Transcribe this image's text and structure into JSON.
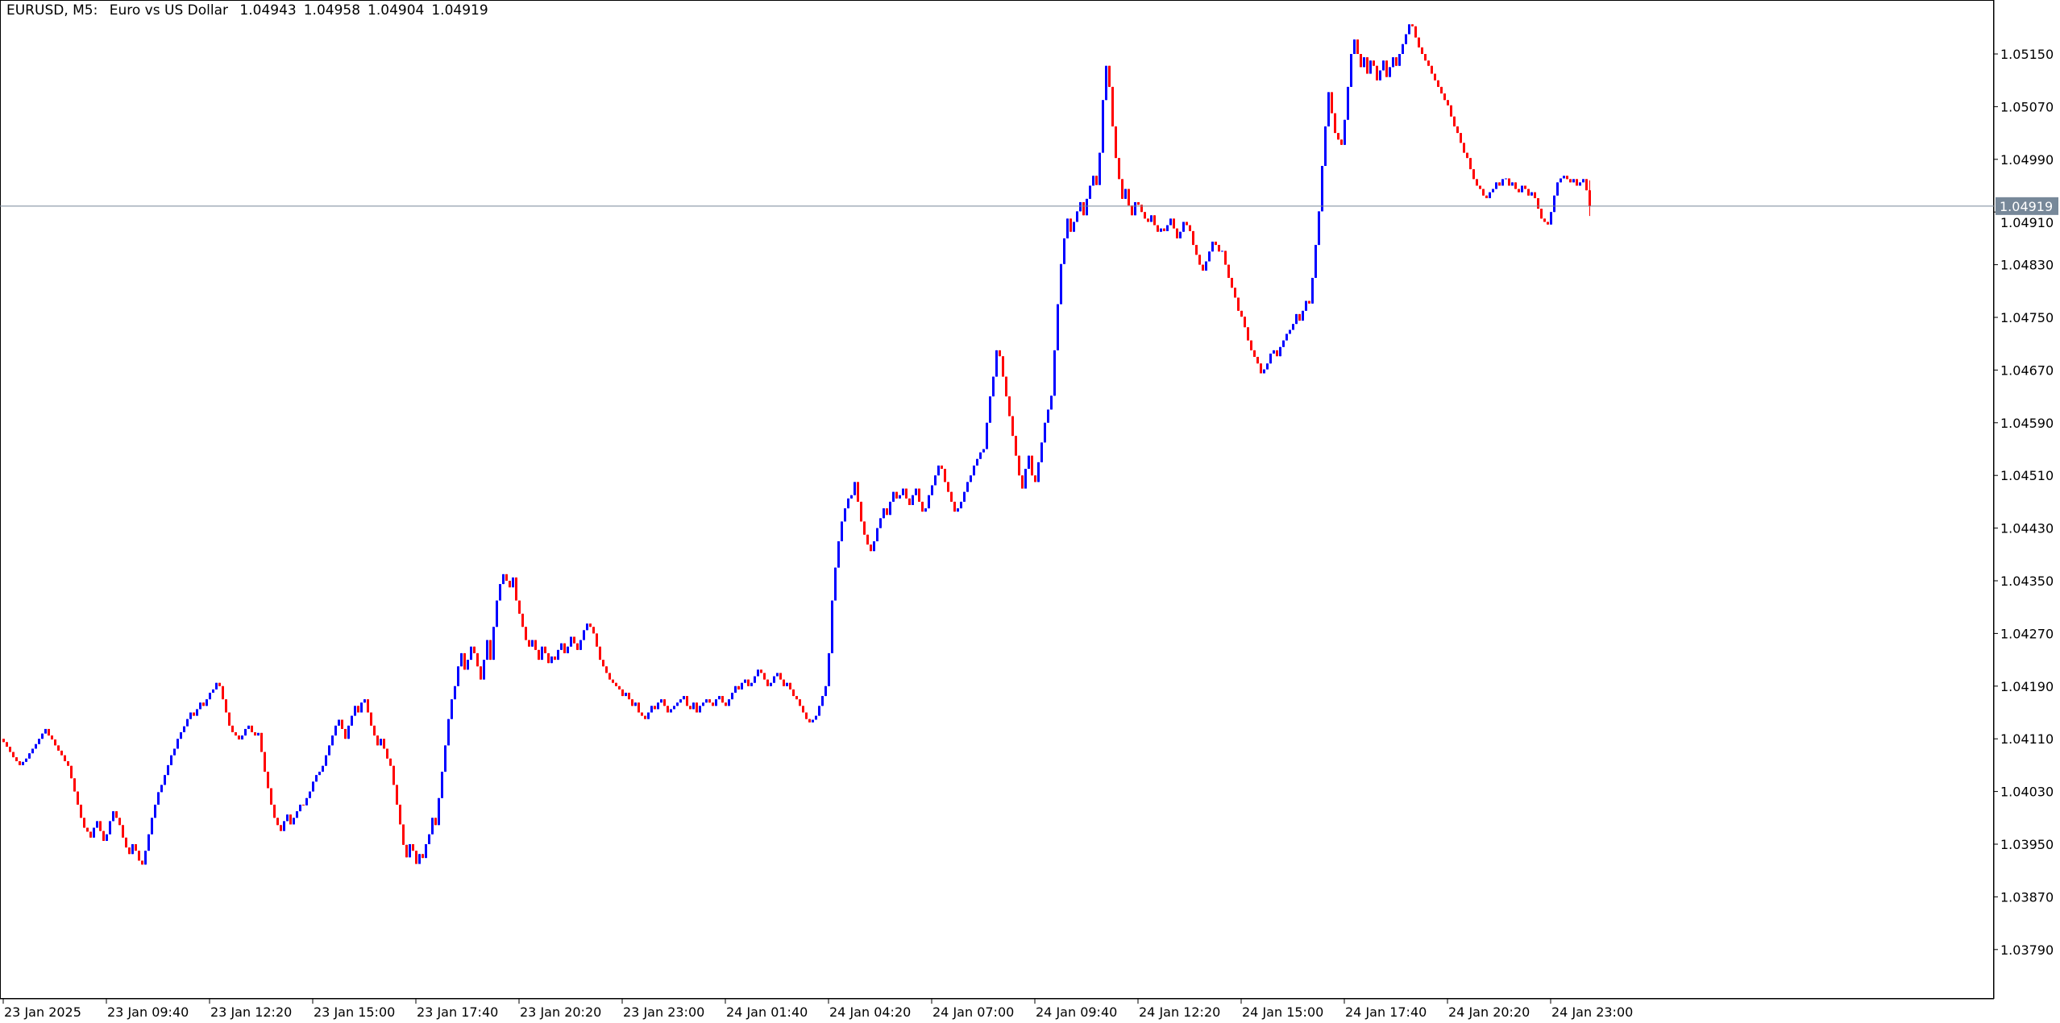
{
  "header": {
    "symbol_timeframe": "EURUSD, M5:",
    "description": "Euro vs US Dollar",
    "open": "1.04943",
    "high": "1.04958",
    "low": "1.04904",
    "close": "1.04919"
  },
  "colors": {
    "bull": "#0000ff",
    "bear": "#ff0000",
    "doji": "#000000",
    "current_price_line": "#778899",
    "background": "#ffffff"
  },
  "chart_data": {
    "type": "candlestick",
    "timeframe": "M5",
    "ylim": [
      1.0369,
      1.0525
    ],
    "grid": false,
    "current_price": 1.04919,
    "current_price_label": "1.04919",
    "price_labels": [
      "1.05150",
      "1.05070",
      "1.04990",
      "1.04910",
      "1.04830",
      "1.04750",
      "1.04670",
      "1.04590",
      "1.04510",
      "1.04430",
      "1.04350",
      "1.04270",
      "1.04190",
      "1.04110",
      "1.04030",
      "1.03950",
      "1.03870",
      "1.03790"
    ],
    "time_labels": [
      "23 Jan 2025",
      "23 Jan 09:40",
      "23 Jan 12:20",
      "23 Jan 15:00",
      "23 Jan 17:40",
      "23 Jan 20:20",
      "23 Jan 23:00",
      "24 Jan 01:40",
      "24 Jan 04:20",
      "24 Jan 07:00",
      "24 Jan 09:40",
      "24 Jan 12:20",
      "24 Jan 15:00",
      "24 Jan 17:40",
      "24 Jan 20:20",
      "24 Jan 23:00"
    ],
    "first_open": 1.0411,
    "closes": [
      1.04105,
      1.04098,
      1.0409,
      1.04082,
      1.04076,
      1.0407,
      1.04075,
      1.0408,
      1.04088,
      1.04095,
      1.04102,
      1.0411,
      1.04118,
      1.04125,
      1.04115,
      1.04109,
      1.041,
      1.04092,
      1.04085,
      1.04076,
      1.04069,
      1.0405,
      1.0403,
      1.0401,
      1.0399,
      1.03975,
      1.03969,
      1.0396,
      1.03975,
      1.03985,
      1.0397,
      1.03955,
      1.03965,
      1.03985,
      1.04,
      1.0399,
      1.03979,
      1.0396,
      1.03945,
      1.03935,
      1.0395,
      1.0394,
      1.03925,
      1.03919,
      1.0394,
      1.03965,
      1.0399,
      1.0401,
      1.04029,
      1.0404,
      1.04055,
      1.0407,
      1.04085,
      1.04095,
      1.0411,
      1.0412,
      1.04129,
      1.0414,
      1.0415,
      1.04145,
      1.04155,
      1.04165,
      1.0416,
      1.0417,
      1.0418,
      1.04185,
      1.04195,
      1.0419,
      1.0417,
      1.0415,
      1.0413,
      1.0412,
      1.04115,
      1.04109,
      1.04115,
      1.04125,
      1.0413,
      1.0412,
      1.04115,
      1.04119,
      1.0409,
      1.0406,
      1.04035,
      1.0401,
      1.0399,
      1.03979,
      1.0397,
      1.03985,
      1.03995,
      1.0398,
      1.0399,
      1.04,
      1.0401,
      1.04009,
      1.0402,
      1.0403,
      1.04045,
      1.04055,
      1.0406,
      1.04069,
      1.04085,
      1.041,
      1.04115,
      1.0413,
      1.04139,
      1.04125,
      1.0411,
      1.0413,
      1.04145,
      1.0416,
      1.0415,
      1.04165,
      1.0417,
      1.0415,
      1.0413,
      1.04115,
      1.041,
      1.0411,
      1.04095,
      1.0408,
      1.04069,
      1.0404,
      1.0401,
      1.0398,
      1.03949,
      1.0393,
      1.0395,
      1.0394,
      1.0392,
      1.03935,
      1.03929,
      1.0395,
      1.03965,
      1.0399,
      1.03979,
      1.0402,
      1.0406,
      1.041,
      1.0414,
      1.0417,
      1.0419,
      1.0422,
      1.0424,
      1.04215,
      1.0423,
      1.0425,
      1.0424,
      1.0422,
      1.042,
      1.0423,
      1.0426,
      1.0423,
      1.0428,
      1.0432,
      1.04345,
      1.0436,
      1.0435,
      1.0434,
      1.04355,
      1.0432,
      1.043,
      1.0428,
      1.0426,
      1.0425,
      1.0426,
      1.04245,
      1.0423,
      1.0425,
      1.0424,
      1.04225,
      1.04235,
      1.0423,
      1.04245,
      1.04255,
      1.0424,
      1.0425,
      1.04265,
      1.04255,
      1.04245,
      1.0426,
      1.04275,
      1.04285,
      1.0428,
      1.0427,
      1.0425,
      1.0423,
      1.0422,
      1.0421,
      1.042,
      1.04195,
      1.0419,
      1.04185,
      1.04175,
      1.0418,
      1.0417,
      1.0416,
      1.04165,
      1.0415,
      1.04145,
      1.0414,
      1.0415,
      1.0416,
      1.04155,
      1.04165,
      1.0417,
      1.0416,
      1.0415,
      1.04155,
      1.0416,
      1.04165,
      1.0417,
      1.04175,
      1.0416,
      1.04155,
      1.04165,
      1.0415,
      1.0416,
      1.04165,
      1.0417,
      1.04165,
      1.0416,
      1.0417,
      1.04175,
      1.04165,
      1.0416,
      1.0417,
      1.0418,
      1.0419,
      1.04185,
      1.04195,
      1.042,
      1.0419,
      1.04195,
      1.04205,
      1.04215,
      1.0421,
      1.042,
      1.0419,
      1.04195,
      1.04205,
      1.0421,
      1.042,
      1.0419,
      1.04195,
      1.04185,
      1.04175,
      1.0417,
      1.0416,
      1.0415,
      1.0414,
      1.04135,
      1.04139,
      1.04145,
      1.0416,
      1.04175,
      1.0419,
      1.0424,
      1.0432,
      1.0437,
      1.0441,
      1.0444,
      1.0446,
      1.04475,
      1.0448,
      1.045,
      1.0447,
      1.0444,
      1.0442,
      1.04405,
      1.04395,
      1.0441,
      1.0443,
      1.04445,
      1.0446,
      1.0445,
      1.0447,
      1.04485,
      1.04475,
      1.0448,
      1.0449,
      1.04475,
      1.04465,
      1.0448,
      1.0449,
      1.0447,
      1.04455,
      1.0446,
      1.0448,
      1.04495,
      1.0451,
      1.04525,
      1.0452,
      1.045,
      1.04485,
      1.0447,
      1.04455,
      1.0446,
      1.0447,
      1.04485,
      1.045,
      1.0451,
      1.04525,
      1.04535,
      1.04545,
      1.0455,
      1.0459,
      1.0463,
      1.0466,
      1.047,
      1.04691,
      1.0466,
      1.0463,
      1.046,
      1.0457,
      1.0454,
      1.0451,
      1.0449,
      1.0452,
      1.0454,
      1.0451,
      1.045,
      1.0453,
      1.0456,
      1.0459,
      1.0461,
      1.04631,
      1.047,
      1.0477,
      1.04831,
      1.0487,
      1.049,
      1.0488,
      1.04895,
      1.04911,
      1.04925,
      1.04905,
      1.0493,
      1.0495,
      1.04965,
      1.04951,
      1.05,
      1.0508,
      1.05132,
      1.051,
      1.0504,
      1.04992,
      1.0496,
      1.0493,
      1.04945,
      1.0492,
      1.04905,
      1.04925,
      1.04921,
      1.0491,
      1.049,
      1.04895,
      1.04905,
      1.0489,
      1.0488,
      1.04885,
      1.04881,
      1.0489,
      1.049,
      1.04885,
      1.0487,
      1.0488,
      1.04895,
      1.0489,
      1.04881,
      1.0486,
      1.04845,
      1.0483,
      1.04821,
      1.04835,
      1.0485,
      1.04865,
      1.0486,
      1.0485,
      1.04851,
      1.0483,
      1.0481,
      1.04795,
      1.0478,
      1.0476,
      1.04751,
      1.04735,
      1.04715,
      1.047,
      1.0469,
      1.0468,
      1.04665,
      1.04671,
      1.0468,
      1.04695,
      1.047,
      1.04691,
      1.04705,
      1.04715,
      1.04725,
      1.04731,
      1.0474,
      1.04755,
      1.04745,
      1.0476,
      1.04775,
      1.04771,
      1.0481,
      1.0486,
      1.04911,
      1.0498,
      1.0504,
      1.05092,
      1.0506,
      1.0503,
      1.0502,
      1.05012,
      1.0505,
      1.051,
      1.0515,
      1.05172,
      1.0515,
      1.0513,
      1.05145,
      1.0512,
      1.0514,
      1.05132,
      1.0511,
      1.05125,
      1.0514,
      1.05115,
      1.0513,
      1.05145,
      1.05132,
      1.0515,
      1.05165,
      1.0518,
      1.05195,
      1.05192,
      1.05175,
      1.0516,
      1.0515,
      1.0514,
      1.05132,
      1.0512,
      1.0511,
      1.051,
      1.0509,
      1.0508,
      1.05072,
      1.05055,
      1.0504,
      1.0503,
      1.05015,
      1.05,
      1.04992,
      1.04975,
      1.0496,
      1.0495,
      1.04945,
      1.04935,
      1.04931,
      1.0494,
      1.04945,
      1.04955,
      1.0495,
      1.0496,
      1.04961,
      1.0495,
      1.04955,
      1.04945,
      1.0494,
      1.0495,
      1.04945,
      1.04935,
      1.0494,
      1.04931,
      1.04915,
      1.049,
      1.04895,
      1.04891,
      1.0491,
      1.04935,
      1.04955,
      1.04961,
      1.04965,
      1.0496,
      1.04955,
      1.0496,
      1.0495,
      1.04955,
      1.0496,
      1.04943,
      1.04919
    ],
    "last_bar": {
      "open": 1.04943,
      "high": 1.04958,
      "low": 1.04904,
      "close": 1.04919
    }
  }
}
